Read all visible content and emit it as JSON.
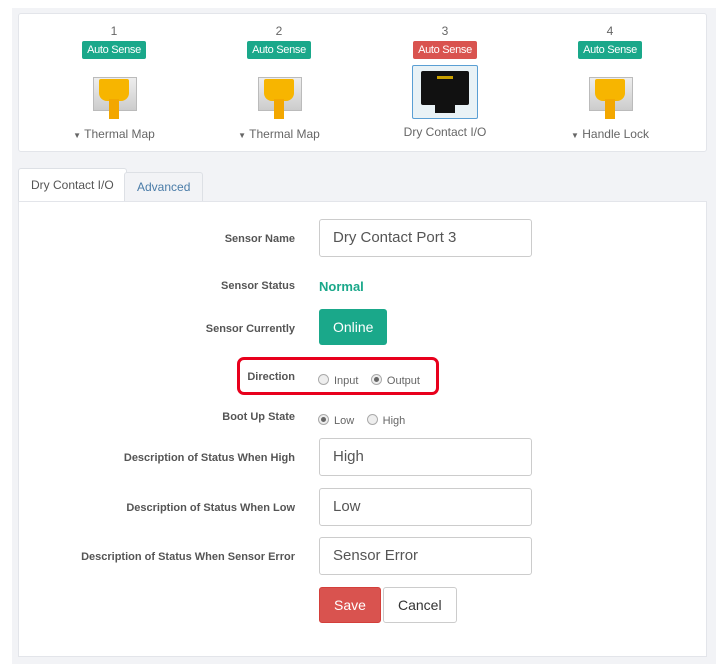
{
  "ports": [
    {
      "number": "1",
      "badge": "Auto Sense",
      "badge_color": "#1aa88a",
      "label": "Thermal Map",
      "dropdown": true,
      "selected": false,
      "icon": "ethernet-plug-yellow-icon"
    },
    {
      "number": "2",
      "badge": "Auto Sense",
      "badge_color": "#1aa88a",
      "label": "Thermal Map",
      "dropdown": true,
      "selected": false,
      "icon": "ethernet-plug-yellow-icon"
    },
    {
      "number": "3",
      "badge": "Auto Sense",
      "badge_color": "#d9534f",
      "label": "Dry Contact I/O",
      "dropdown": false,
      "selected": true,
      "icon": "ethernet-jack-icon"
    },
    {
      "number": "4",
      "badge": "Auto Sense",
      "badge_color": "#1aa88a",
      "label": "Handle Lock",
      "dropdown": true,
      "selected": false,
      "icon": "ethernet-plug-yellow-icon"
    }
  ],
  "tabs": [
    {
      "label": "Dry Contact I/O",
      "active": true
    },
    {
      "label": "Advanced",
      "active": false
    }
  ],
  "form": {
    "sensor_name": {
      "label": "Sensor Name",
      "value": "Dry Contact Port 3"
    },
    "sensor_status": {
      "label": "Sensor Status",
      "value": "Normal",
      "color": "#1aa88a"
    },
    "sensor_currently": {
      "label": "Sensor Currently",
      "value": "Online"
    },
    "direction": {
      "label": "Direction",
      "options": [
        "Input",
        "Output"
      ],
      "selected": "Output"
    },
    "boot_up_state": {
      "label": "Boot Up State",
      "options": [
        "Low",
        "High"
      ],
      "selected": "Low"
    },
    "desc_high": {
      "label": "Description of Status When High",
      "value": "High"
    },
    "desc_low": {
      "label": "Description of Status When Low",
      "value": "Low"
    },
    "desc_error": {
      "label": "Description of Status When Sensor Error",
      "value": "Sensor Error"
    },
    "save": "Save",
    "cancel": "Cancel"
  },
  "colors": {
    "accent": "#1aa88a",
    "danger": "#d9534f",
    "highlight": "#e8001c"
  }
}
